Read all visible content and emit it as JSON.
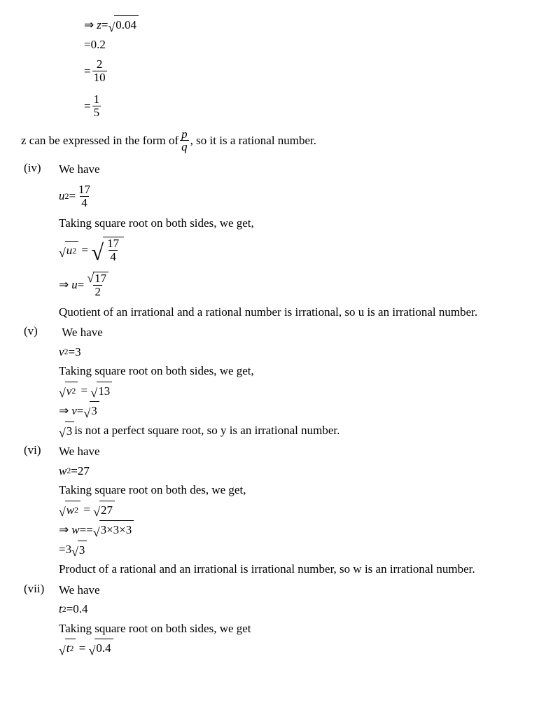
{
  "l1": "0.04",
  "l2": "0.2",
  "l3n": "2",
  "l3d": "10",
  "l4n": "1",
  "l4d": "5",
  "zline_a": "z can be expressed in the form of ",
  "zline_pn": "p",
  "zline_pd": "q",
  "zline_b": ", so it is a rational number.",
  "iv": "(iv)",
  "wehave": "We have",
  "iv_eq_n": "17",
  "iv_eq_d": "4",
  "sqboth": "Taking square root on both sides, we get,",
  "iv_r_n": "17",
  "iv_r_d": "4",
  "iv_u_n": "17",
  "iv_u_d": "2",
  "iv_concl": "Quotient of an irrational and a rational number is irrational, so u is an irrational number.",
  "v": "(v)",
  "v_eq": "3",
  "v_r": "13",
  "v_v": "3",
  "v_c1": "3",
  "v_c2": " is not a perfect square root, so y is an irrational number.",
  "vi": "(vi)",
  "vi_eq": "27",
  "sqboth2": "Taking square root on both des, we get,",
  "vi_r": "27",
  "vi_w": "3×3×3",
  "vi_res_a": "3",
  "vi_res_b": "3",
  "vi_concl": "Product of a rational and an irrational is irrational number, so w is an irrational number.",
  "vii": "(vii)",
  "vii_eq": "0.4",
  "sqboth3": "Taking square root on both sides, we get",
  "vii_r": "0.4"
}
